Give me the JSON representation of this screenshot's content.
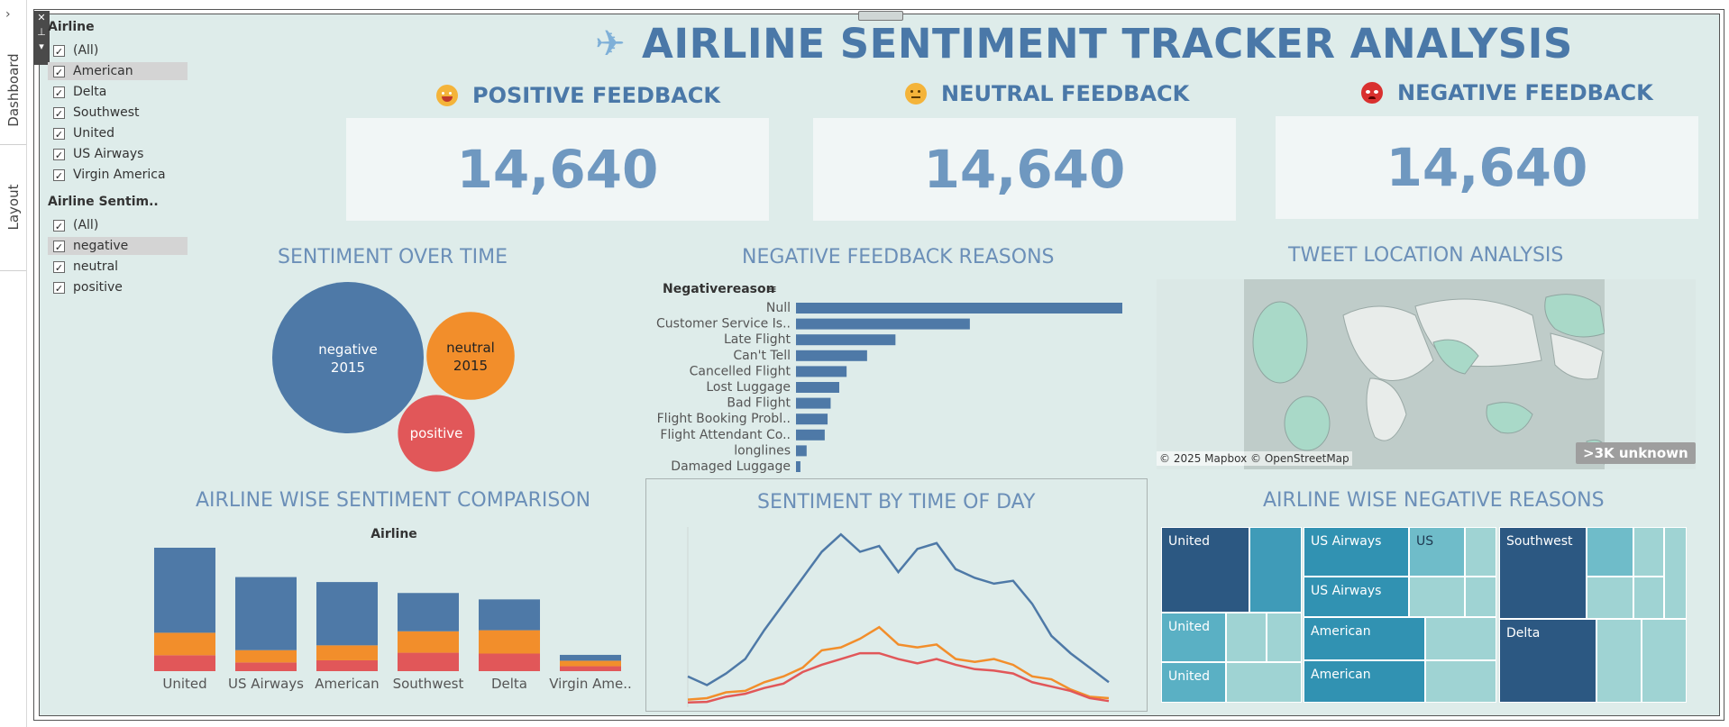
{
  "app": {
    "side_tabs": [
      "Dashboard",
      "Layout"
    ],
    "expand_arrow": "›",
    "toolstrip_icons": [
      "close-icon",
      "pin-icon",
      "dropdown-icon"
    ]
  },
  "filters": {
    "airline": {
      "title": "Airline",
      "items": [
        {
          "label": "(All)",
          "checked": true
        },
        {
          "label": "American",
          "checked": true,
          "highlighted": true
        },
        {
          "label": "Delta",
          "checked": true
        },
        {
          "label": "Southwest",
          "checked": true
        },
        {
          "label": "United",
          "checked": true
        },
        {
          "label": "US Airways",
          "checked": true
        },
        {
          "label": "Virgin America",
          "checked": true
        }
      ]
    },
    "sentiment": {
      "title": "Airline Sentim..",
      "items": [
        {
          "label": "(All)",
          "checked": true
        },
        {
          "label": "negative",
          "checked": true,
          "highlighted": true
        },
        {
          "label": "neutral",
          "checked": true
        },
        {
          "label": "positive",
          "checked": true
        }
      ]
    }
  },
  "header": {
    "title": "AIRLINE SENTIMENT TRACKER ANALYSIS",
    "icon": "airplane-icon"
  },
  "kpis": [
    {
      "label": "POSITIVE FEEDBACK",
      "value": "14,640",
      "icon": "smiley-face-icon",
      "icon_color": "#f4b43a"
    },
    {
      "label": "NEUTRAL FEEDBACK",
      "value": "14,640",
      "icon": "neutral-face-icon",
      "icon_color": "#f4b43a"
    },
    {
      "label": "NEGATIVE FEEDBACK",
      "value": "14,640",
      "icon": "angry-face-icon",
      "icon_color": "#d9302f"
    }
  ],
  "colors": {
    "negative": "#4e79a7",
    "neutral": "#f28e2b",
    "positive": "#e15759",
    "background": "#deecea",
    "title_blue": "#4a78a8"
  },
  "sections": {
    "sentiment_over_time": "SENTIMENT OVER TIME",
    "negative_reasons": "NEGATIVE FEEDBACK REASONS",
    "tweet_location": "TWEET LOCATION ANALYSIS",
    "airline_comparison": "AIRLINE WISE SENTIMENT COMPARISON",
    "time_of_day": "SENTIMENT BY TIME OF DAY",
    "airline_negative_reasons": "AIRLINE WISE NEGATIVE REASONS"
  },
  "map": {
    "credit": "© 2025 Mapbox © OpenStreetMap",
    "unknown_badge": ">3K unknown"
  },
  "chart_data": [
    {
      "type": "bubble",
      "title": "SENTIMENT OVER TIME",
      "bubbles": [
        {
          "label": "negative",
          "sublabel": "2015",
          "value": 9178,
          "color": "#4e79a7"
        },
        {
          "label": "neutral",
          "sublabel": "2015",
          "value": 3099,
          "color": "#f28e2b"
        },
        {
          "label": "positive",
          "sublabel": "",
          "value": 2363,
          "color": "#e15759"
        }
      ]
    },
    {
      "type": "bar",
      "orientation": "horizontal",
      "title": "NEGATIVE FEEDBACK REASONS",
      "header": "Negativereason",
      "categories": [
        "Null",
        "Customer Service Is..",
        "Late Flight",
        "Can't Tell",
        "Cancelled Flight",
        "Lost Luggage",
        "Bad Flight",
        "Flight Booking Probl..",
        "Flight Attendant Co..",
        "longlines",
        "Damaged Luggage"
      ],
      "values": [
        5462,
        2910,
        1665,
        1190,
        847,
        724,
        580,
        529,
        481,
        178,
        74
      ],
      "color": "#4e79a7"
    },
    {
      "type": "bar",
      "stacked": true,
      "title": "AIRLINE WISE SENTIMENT COMPARISON",
      "xlabel": "Airline",
      "categories": [
        "United",
        "US Airways",
        "American",
        "Southwest",
        "Delta",
        "Virgin Ame.."
      ],
      "series": [
        {
          "name": "negative",
          "values": [
            2633,
            2263,
            1960,
            1186,
            955,
            181
          ],
          "color": "#4e79a7"
        },
        {
          "name": "neutral",
          "values": [
            697,
            381,
            463,
            664,
            723,
            171
          ],
          "color": "#f28e2b"
        },
        {
          "name": "positive",
          "values": [
            492,
            269,
            336,
            570,
            544,
            152
          ],
          "color": "#e15759"
        }
      ]
    },
    {
      "type": "line",
      "title": "SENTIMENT BY TIME OF DAY",
      "x": [
        0,
        1,
        2,
        3,
        4,
        5,
        6,
        7,
        8,
        9,
        10,
        11,
        12,
        13,
        14,
        15,
        16,
        17,
        18,
        19,
        20,
        21,
        22,
        23
      ],
      "series": [
        {
          "name": "negative",
          "values": [
            100,
            70,
            110,
            160,
            260,
            350,
            440,
            530,
            590,
            530,
            550,
            460,
            540,
            560,
            470,
            440,
            420,
            430,
            350,
            240,
            180,
            130,
            80,
            0
          ],
          "color": "#4e79a7"
        },
        {
          "name": "neutral",
          "values": [
            20,
            25,
            45,
            50,
            80,
            100,
            130,
            190,
            200,
            230,
            270,
            210,
            200,
            210,
            160,
            150,
            160,
            140,
            100,
            90,
            55,
            30,
            25,
            0
          ],
          "color": "#f28e2b"
        },
        {
          "name": "positive",
          "values": [
            10,
            12,
            30,
            40,
            60,
            75,
            115,
            140,
            160,
            180,
            180,
            160,
            145,
            160,
            140,
            125,
            120,
            110,
            80,
            65,
            50,
            25,
            15,
            0
          ],
          "color": "#e15759"
        }
      ]
    },
    {
      "type": "treemap",
      "title": "AIRLINE WISE NEGATIVE REASONS",
      "labels": [
        "United",
        "United",
        "United",
        "US Airways",
        "US Airways",
        "US",
        "American",
        "American",
        "Southwest",
        "Delta"
      ]
    }
  ]
}
